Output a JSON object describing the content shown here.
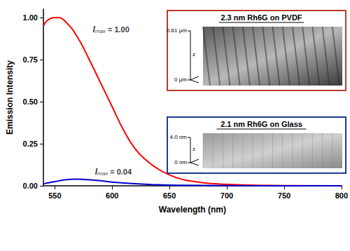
{
  "chart_data": {
    "type": "line",
    "x_label": "Wavelength (nm)",
    "y_label": "Emission Intensity",
    "xlim": [
      540,
      800
    ],
    "xticks": [
      550,
      600,
      650,
      700,
      750,
      800
    ],
    "ylim": [
      0,
      1.05
    ],
    "yticks": [
      {
        "value": 0,
        "label": "0.00"
      },
      {
        "value": 0.25,
        "label": "0.25"
      },
      {
        "value": 0.5,
        "label": "0.50"
      },
      {
        "value": 0.75,
        "label": "0.75"
      },
      {
        "value": 1,
        "label": "1.00"
      }
    ],
    "grid": false,
    "series": [
      {
        "color": "#ff0000",
        "x": [
          540,
          545,
          552,
          560,
          570,
          580,
          590,
          600,
          610,
          620,
          630,
          640,
          650,
          660,
          670,
          680,
          690,
          700,
          720,
          750,
          800
        ],
        "values": [
          0.95,
          0.99,
          1.0,
          0.97,
          0.88,
          0.75,
          0.61,
          0.47,
          0.33,
          0.22,
          0.15,
          0.1,
          0.065,
          0.04,
          0.027,
          0.018,
          0.012,
          0.008,
          0.004,
          0.001,
          0.0
        ]
      },
      {
        "color": "#0000cc",
        "x": [
          540,
          550,
          560,
          567,
          575,
          590,
          600,
          620,
          640,
          660,
          700,
          750,
          800
        ],
        "values": [
          0.012,
          0.025,
          0.036,
          0.04,
          0.038,
          0.03,
          0.022,
          0.012,
          0.006,
          0.003,
          0.001,
          0.0,
          0.0
        ]
      }
    ],
    "annotations": [
      {
        "text": "Imax = 1.00",
        "x": 583,
        "y": 0.93
      },
      {
        "text": "Imax = 0.04",
        "x": 585,
        "y": 0.085
      }
    ],
    "insets": [
      {
        "title": "2.3 nm Rh6G on PVDF",
        "color": "#c0392b",
        "z_label": "z",
        "z_max": "0.61 μm",
        "z_min": "0 μm"
      },
      {
        "title": "2.1 nm Rh6G on Glass",
        "color": "#1f3a93",
        "z_label": "z",
        "z_max": "4.0 nm",
        "z_min": "0 nm"
      }
    ]
  }
}
